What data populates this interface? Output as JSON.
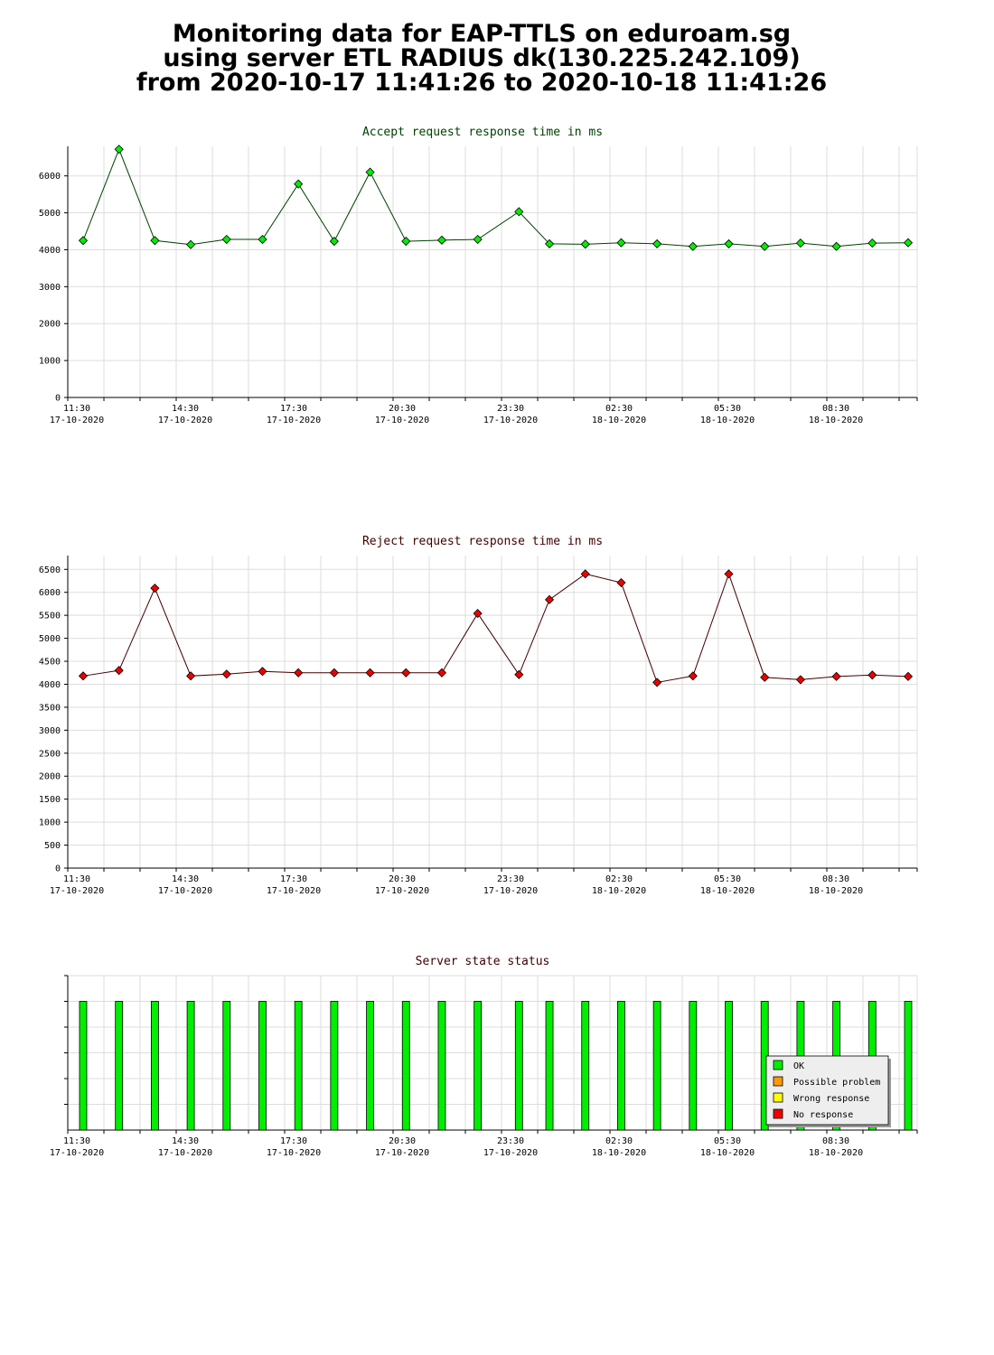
{
  "page": {
    "title_lines": [
      "Monitoring data for EAP-TTLS on eduroam.sg",
      "using server ETL RADIUS dk(130.225.242.109)",
      "from 2020-10-17 11:41:26 to 2020-10-18 11:41:26"
    ]
  },
  "x_axis": {
    "labels": [
      [
        "11:30",
        "17-10-2020"
      ],
      [
        "14:30",
        "17-10-2020"
      ],
      [
        "17:30",
        "17-10-2020"
      ],
      [
        "20:30",
        "17-10-2020"
      ],
      [
        "23:30",
        "17-10-2020"
      ],
      [
        "02:30",
        "18-10-2020"
      ],
      [
        "05:30",
        "18-10-2020"
      ],
      [
        "08:30",
        "18-10-2020"
      ]
    ]
  },
  "chart_data": [
    {
      "type": "line",
      "title": "Accept request response time in ms",
      "title_color": "#004000",
      "line_color": "#004000",
      "marker_color": "#00ee00",
      "ylim": [
        0,
        6800
      ],
      "yticks": [
        0,
        1000,
        2000,
        3000,
        4000,
        5000,
        6000
      ],
      "grid": true,
      "x": [
        "11:41",
        "12:41",
        "13:41",
        "14:41",
        "15:41",
        "16:41",
        "17:41",
        "18:41",
        "19:41",
        "20:41",
        "21:41",
        "22:41",
        "23:50",
        "00:41",
        "01:41",
        "02:41",
        "03:41",
        "04:41",
        "05:41",
        "06:41",
        "07:41",
        "08:41",
        "09:41",
        "10:41"
      ],
      "values": [
        4250,
        6720,
        4250,
        4140,
        4280,
        4280,
        5780,
        4230,
        6100,
        4230,
        4260,
        4280,
        5030,
        4160,
        4150,
        4190,
        4160,
        4090,
        4160,
        4090,
        4180,
        4090,
        4180,
        4190
      ]
    },
    {
      "type": "line",
      "title": "Reject request response time in ms",
      "title_color": "#400000",
      "line_color": "#400000",
      "marker_color": "#ee0000",
      "ylim": [
        0,
        6800
      ],
      "yticks": [
        0,
        500,
        1000,
        1500,
        2000,
        2500,
        3000,
        3500,
        4000,
        4500,
        5000,
        5500,
        6000,
        6500
      ],
      "grid": true,
      "x": [
        "11:41",
        "12:41",
        "13:41",
        "14:41",
        "15:41",
        "16:41",
        "17:41",
        "18:41",
        "19:41",
        "20:41",
        "21:41",
        "22:41",
        "23:50",
        "00:41",
        "01:41",
        "02:41",
        "03:41",
        "04:41",
        "05:41",
        "06:41",
        "07:41",
        "08:41",
        "09:41",
        "10:41"
      ],
      "values": [
        4180,
        4300,
        6090,
        4180,
        4220,
        4280,
        4250,
        4250,
        4250,
        4250,
        4250,
        5540,
        4210,
        5840,
        6400,
        6210,
        4040,
        4180,
        6400,
        4150,
        4100,
        4170,
        4200,
        4170
      ]
    },
    {
      "type": "bar",
      "title": "Server state status",
      "title_color": "#400000",
      "ylim": [
        0,
        1.2
      ],
      "grid": true,
      "x": [
        "11:41",
        "12:41",
        "13:41",
        "14:41",
        "15:41",
        "16:41",
        "17:41",
        "18:41",
        "19:41",
        "20:41",
        "21:41",
        "22:41",
        "23:50",
        "00:41",
        "01:41",
        "02:41",
        "03:41",
        "04:41",
        "05:41",
        "06:41",
        "07:41",
        "08:41",
        "09:41",
        "10:41"
      ],
      "values": [
        1,
        1,
        1,
        1,
        1,
        1,
        1,
        1,
        1,
        1,
        1,
        1,
        1,
        1,
        1,
        1,
        1,
        1,
        1,
        1,
        1,
        1,
        1,
        1
      ],
      "status": [
        "OK",
        "OK",
        "OK",
        "OK",
        "OK",
        "OK",
        "OK",
        "OK",
        "OK",
        "OK",
        "OK",
        "OK",
        "OK",
        "OK",
        "OK",
        "OK",
        "OK",
        "OK",
        "OK",
        "OK",
        "OK",
        "OK",
        "OK",
        "OK"
      ],
      "legend_position": "bottom-right",
      "legend": [
        {
          "name": "OK",
          "color": "#00ee00"
        },
        {
          "name": "Possible problem",
          "color": "#ff9900"
        },
        {
          "name": "Wrong response",
          "color": "#ffff00"
        },
        {
          "name": "No response",
          "color": "#ee0000"
        }
      ]
    }
  ]
}
